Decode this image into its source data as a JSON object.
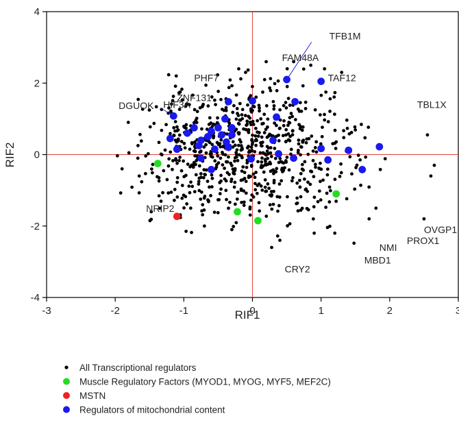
{
  "chart_data": {
    "type": "scatter",
    "xlabel": "RIF1",
    "ylabel": "RIF2",
    "xlim": [
      -3,
      3
    ],
    "ylim": [
      -4,
      4
    ],
    "xticks": [
      "-3",
      "-2",
      "-1",
      "0",
      "1",
      "2",
      "3"
    ],
    "yticks": [
      "-4",
      "-2",
      "0",
      "2",
      "4"
    ],
    "reference_lines": {
      "x": 0,
      "y": 0,
      "color": "#e0403a"
    },
    "colors": {
      "all": "#000000",
      "mrf": "#22dd22",
      "mstn": "#ee2222",
      "mito": "#1a1aee"
    },
    "series": [
      {
        "name": "All Transcriptional regulators",
        "color": "#000000",
        "background_count": 760,
        "points": [
          [
            -1.65,
            -0.6
          ],
          [
            -0.9,
            -1.5
          ],
          [
            1.48,
            -2.48
          ],
          [
            0.9,
            -2.2
          ],
          [
            -0.3,
            -2.1
          ],
          [
            0.28,
            -2.6
          ],
          [
            1.8,
            -1.5
          ],
          [
            2.5,
            -1.8
          ],
          [
            2.55,
            0.55
          ],
          [
            2.6,
            -0.6
          ],
          [
            2.65,
            -0.3
          ],
          [
            1.3,
            2.3
          ],
          [
            0.6,
            2.6
          ],
          [
            0.85,
            2.5
          ],
          [
            -0.1,
            2.3
          ],
          [
            0.2,
            2.6
          ],
          [
            -0.2,
            2.4
          ],
          [
            1.05,
            2.4
          ],
          [
            -1.8,
            0.05
          ],
          [
            -1.9,
            -0.4
          ],
          [
            1.7,
            -1.8
          ],
          [
            -0.7,
            -2.0
          ],
          [
            0.4,
            -2.4
          ],
          [
            1.2,
            -2.2
          ]
        ]
      },
      {
        "name": "Muscle Regulatory Factors (MYOD1, MYOG, MYF5, MEF2C)",
        "color": "#22dd22",
        "points": [
          [
            -1.38,
            -0.25
          ],
          [
            -0.22,
            -1.6
          ],
          [
            0.08,
            -1.85
          ],
          [
            1.22,
            -1.1
          ]
        ]
      },
      {
        "name": "MSTN",
        "color": "#ee2222",
        "points": [
          [
            -1.1,
            -1.73
          ]
        ]
      },
      {
        "name": "Regulators of mitochondrial content",
        "color": "#1a1aee",
        "points": [
          [
            -1.15,
            1.08
          ],
          [
            -1.2,
            0.45
          ],
          [
            -1.1,
            0.15
          ],
          [
            -0.95,
            0.6
          ],
          [
            -0.85,
            0.75
          ],
          [
            -0.75,
            0.4
          ],
          [
            -0.78,
            0.25
          ],
          [
            -0.75,
            -0.1
          ],
          [
            -0.65,
            0.5
          ],
          [
            -0.6,
            0.65
          ],
          [
            -0.55,
            0.15
          ],
          [
            -0.5,
            0.75
          ],
          [
            -0.45,
            0.55
          ],
          [
            -0.4,
            1.0
          ],
          [
            -0.38,
            0.35
          ],
          [
            -0.35,
            0.2
          ],
          [
            -0.35,
            1.48
          ],
          [
            -0.3,
            0.55
          ],
          [
            -0.3,
            0.75
          ],
          [
            -0.6,
            -0.42
          ],
          [
            0.0,
            1.5
          ],
          [
            -0.02,
            -0.12
          ],
          [
            0.3,
            0.4
          ],
          [
            0.35,
            1.05
          ],
          [
            0.38,
            0.02
          ],
          [
            0.5,
            2.1
          ],
          [
            0.6,
            -0.1
          ],
          [
            0.62,
            1.48
          ],
          [
            1.0,
            2.05
          ],
          [
            1.0,
            0.17
          ],
          [
            1.1,
            -0.15
          ],
          [
            1.4,
            0.12
          ],
          [
            1.6,
            -0.42
          ],
          [
            1.85,
            0.22
          ]
        ]
      }
    ],
    "labels": [
      {
        "text": "TFB1M",
        "x": 0.5,
        "y": 2.1,
        "lx": 1.12,
        "ly": 3.3,
        "arrow": true
      },
      {
        "text": "FAM48A",
        "x": 0.43,
        "y": 2.62
      },
      {
        "text": "TAF12",
        "x": 1.1,
        "y": 2.05
      },
      {
        "text": "PHF7",
        "x": -0.85,
        "y": 2.05
      },
      {
        "text": "ZNF131",
        "x": -1.1,
        "y": 1.5
      },
      {
        "text": "DGUOK",
        "x": -1.15,
        "y": 1.08,
        "lx": -1.95,
        "ly": 1.35,
        "arrow": true
      },
      {
        "text": "HIF3A",
        "x": -1.3,
        "y": 1.3
      },
      {
        "text": "TBL1X",
        "x": 2.4,
        "y": 1.3
      },
      {
        "text": "NRIP2",
        "x": -1.55,
        "y": -1.6
      },
      {
        "text": "OVGP1",
        "x": 2.5,
        "y": -2.2
      },
      {
        "text": "PROX1",
        "x": 2.25,
        "y": -2.5
      },
      {
        "text": "NMI",
        "x": 1.85,
        "y": -2.7
      },
      {
        "text": "MBD1",
        "x": 1.63,
        "y": -3.05
      },
      {
        "text": "CRY2",
        "x": 0.47,
        "y": -3.3
      }
    ]
  }
}
